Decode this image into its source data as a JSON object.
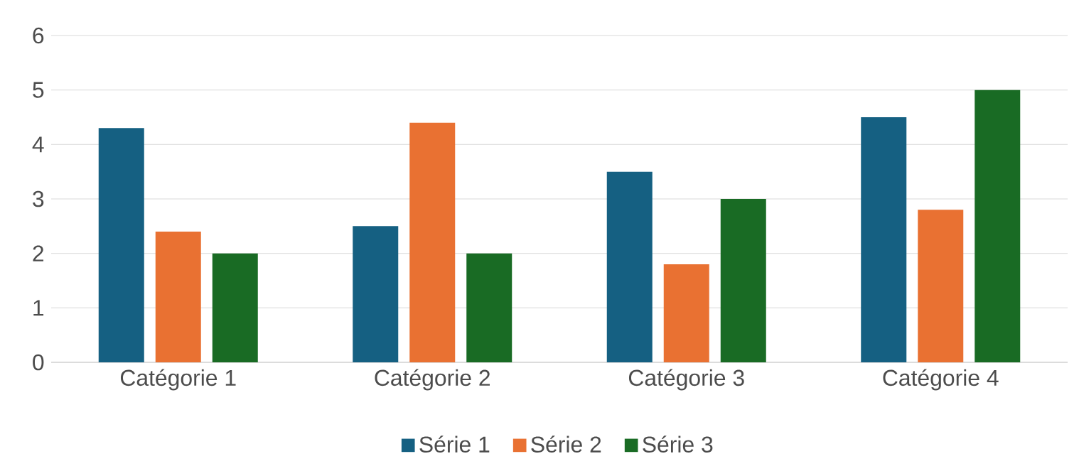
{
  "chart_data": {
    "type": "bar",
    "categories": [
      "Catégorie 1",
      "Catégorie 2",
      "Catégorie 3",
      "Catégorie 4"
    ],
    "series": [
      {
        "name": "Série 1",
        "color": "#156082",
        "values": [
          4.3,
          2.5,
          3.5,
          4.5
        ]
      },
      {
        "name": "Série 2",
        "color": "#e97132",
        "values": [
          2.4,
          4.4,
          1.8,
          2.8
        ]
      },
      {
        "name": "Série 3",
        "color": "#196b24",
        "values": [
          2,
          2,
          3,
          5
        ]
      }
    ],
    "ylim": [
      0,
      6
    ],
    "yticks": [
      0,
      1,
      2,
      3,
      4,
      5,
      6
    ],
    "grid": "y",
    "legend": "bottom"
  }
}
